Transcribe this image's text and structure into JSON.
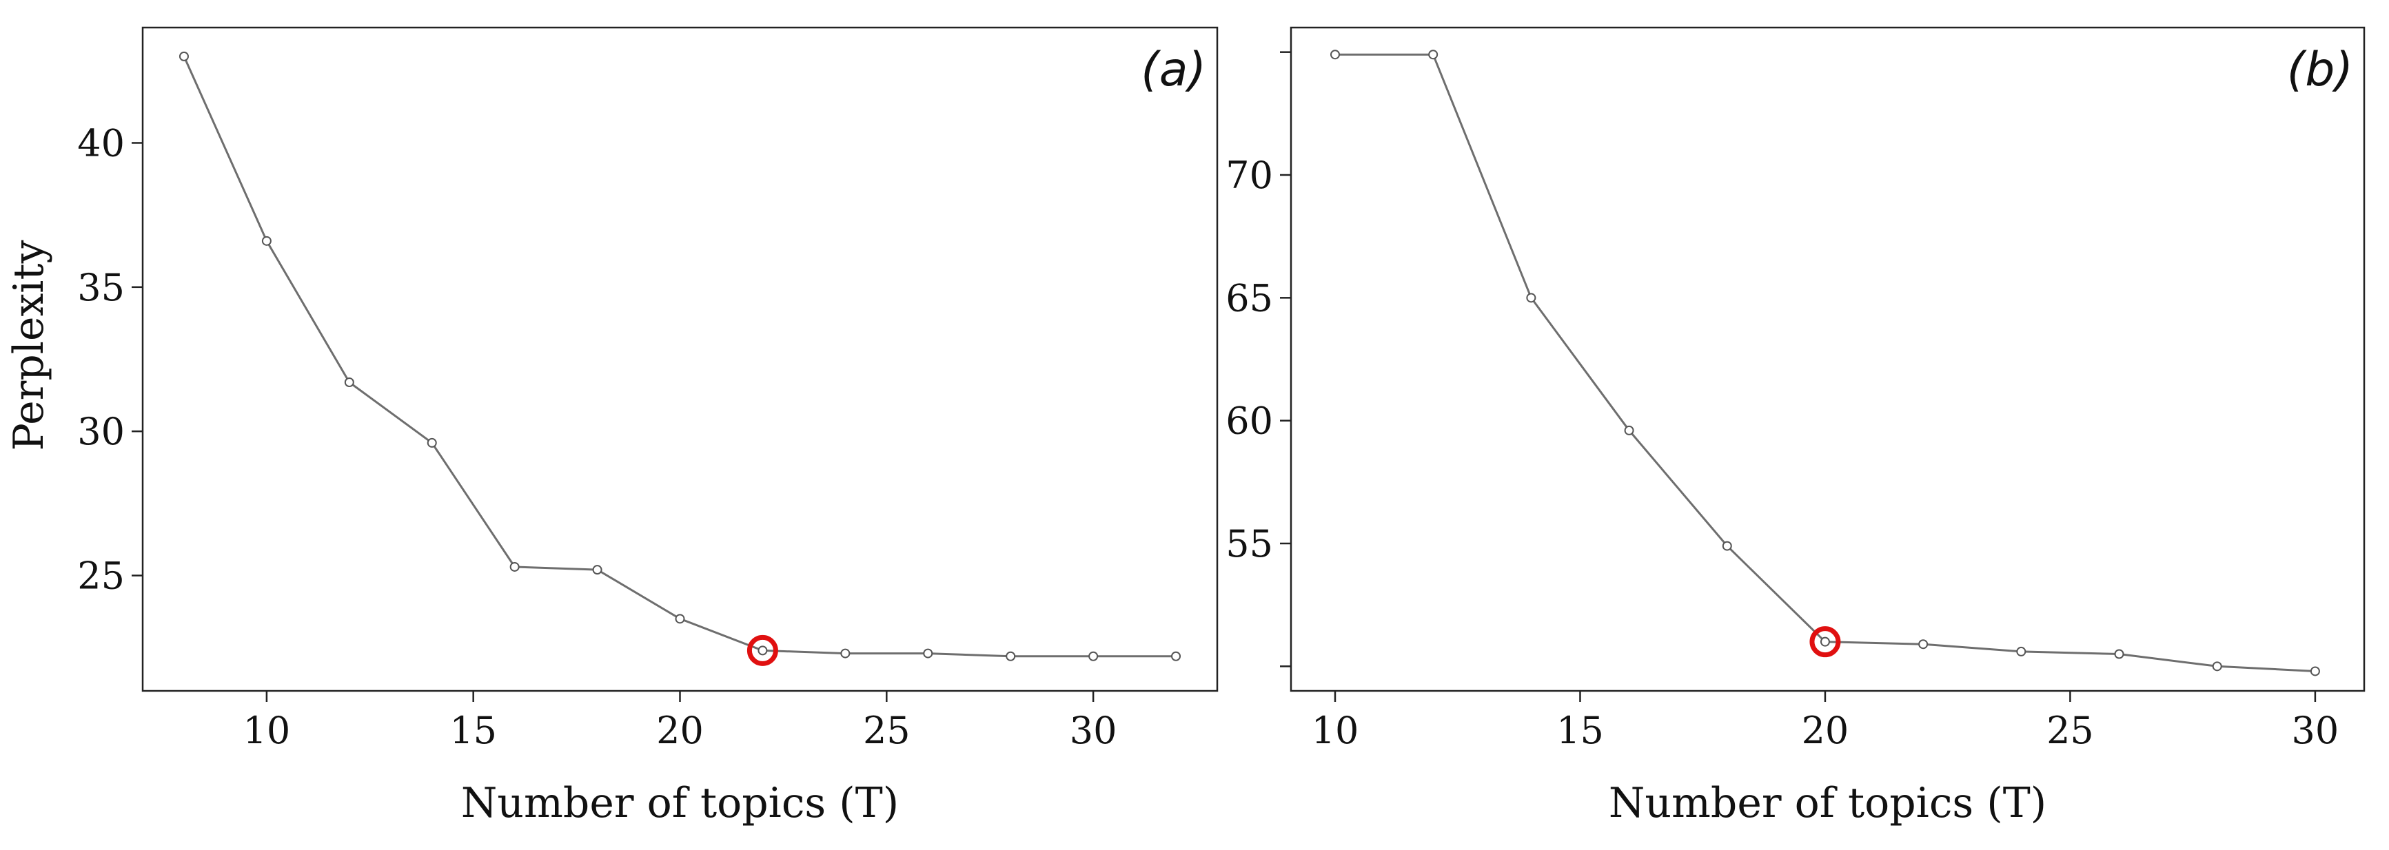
{
  "chart_data": [
    {
      "type": "line",
      "panel_label": "(a)",
      "xlabel": "Number of topics (T)",
      "ylabel": "Perplexity",
      "xlim": [
        7,
        33
      ],
      "ylim": [
        21,
        44
      ],
      "xticks": [
        10,
        15,
        20,
        25,
        30
      ],
      "yticks": [
        25,
        30,
        35,
        40
      ],
      "x": [
        8,
        10,
        12,
        14,
        16,
        18,
        20,
        22,
        24,
        26,
        28,
        30,
        32
      ],
      "y": [
        43.0,
        36.6,
        31.7,
        29.6,
        25.3,
        25.2,
        23.5,
        22.4,
        22.3,
        22.3,
        22.2,
        22.2,
        22.2
      ],
      "highlight_x": 22,
      "highlight_color": "#e01010",
      "grid": false
    },
    {
      "type": "line",
      "panel_label": "(b)",
      "xlabel": "Number of topics (T)",
      "ylabel": "",
      "xlim": [
        9.1,
        31
      ],
      "ylim": [
        49,
        76
      ],
      "xticks": [
        10,
        15,
        20,
        25,
        30
      ],
      "yticks": [
        50,
        55,
        60,
        65,
        70,
        75
      ],
      "ytick_labels": [
        "",
        "55",
        "60",
        "65",
        "70",
        ""
      ],
      "x": [
        10,
        12,
        14,
        16,
        18,
        20,
        22,
        24,
        26,
        28,
        30
      ],
      "y": [
        74.9,
        74.9,
        65.0,
        59.6,
        54.9,
        51.0,
        50.9,
        50.6,
        50.5,
        50.0,
        49.8
      ],
      "highlight_x": 20,
      "highlight_color": "#e01010",
      "grid": false
    }
  ]
}
